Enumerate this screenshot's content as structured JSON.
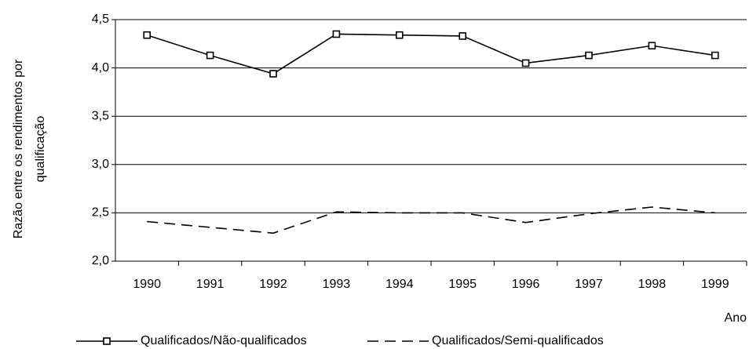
{
  "chart_data": {
    "type": "line",
    "ylabel": [
      "Razão entre os rendimentos por",
      "qualificação"
    ],
    "xlabel": "Ano",
    "categories": [
      "1990",
      "1991",
      "1992",
      "1993",
      "1994",
      "1995",
      "1996",
      "1997",
      "1998",
      "1999"
    ],
    "series": [
      {
        "name": "Qualificados/Não-qualificados",
        "color": "#000000",
        "line_style": "solid",
        "marker": "square",
        "values": [
          4.34,
          4.13,
          3.94,
          4.35,
          4.34,
          4.33,
          4.05,
          4.13,
          4.23,
          4.13
        ]
      },
      {
        "name": "Qualificados/Semi-qualificados",
        "color": "#000000",
        "line_style": "dashed",
        "marker": null,
        "values": [
          2.41,
          2.35,
          2.29,
          2.51,
          2.5,
          2.5,
          2.4,
          2.49,
          2.56,
          2.5
        ]
      }
    ],
    "ylim": [
      2.0,
      4.5
    ],
    "yticks": [
      {
        "value": 2.0,
        "label": "2,0"
      },
      {
        "value": 2.5,
        "label": "2,5"
      },
      {
        "value": 3.0,
        "label": "3,0"
      },
      {
        "value": 3.5,
        "label": "3,5"
      },
      {
        "value": 4.0,
        "label": "4,0"
      },
      {
        "value": 4.5,
        "label": "4,5"
      }
    ],
    "grid": true,
    "legend": "bottom"
  }
}
